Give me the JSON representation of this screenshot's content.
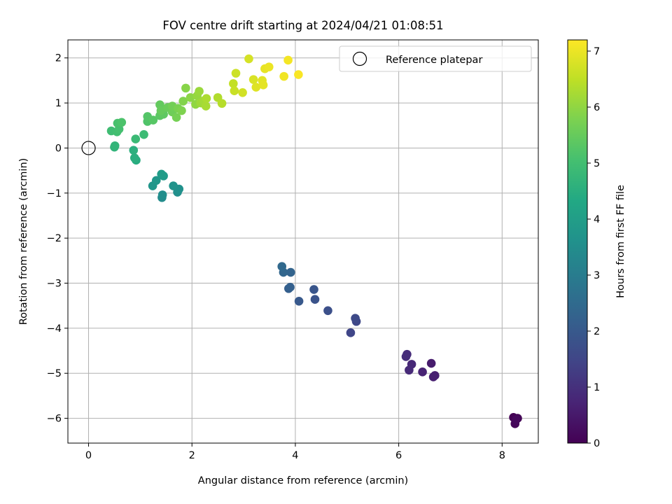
{
  "chart_data": {
    "type": "scatter",
    "title": "FOV centre drift starting at 2024/04/21 01:08:51",
    "xlabel": "Angular distance from reference (arcmin)",
    "ylabel": "Rotation from reference (arcmin)",
    "xlim": [
      -0.4,
      8.7
    ],
    "ylim": [
      -6.55,
      2.4
    ],
    "xticks": [
      0,
      2,
      4,
      6,
      8
    ],
    "yticks": [
      -6,
      -5,
      -4,
      -3,
      -2,
      -1,
      0,
      1,
      2
    ],
    "grid": true,
    "legend": {
      "placement": "top-right",
      "entries": [
        "Reference platepar"
      ]
    },
    "reference_point": {
      "x": 0,
      "y": 0
    },
    "colorbar": {
      "label": "Hours from first FF file",
      "range": [
        0,
        7.2
      ],
      "ticks": [
        0,
        1,
        2,
        3,
        4,
        5,
        6,
        7
      ],
      "colormap": "viridis"
    },
    "points": [
      {
        "x": 8.22,
        "y": -5.98,
        "h": 0.0
      },
      {
        "x": 8.3,
        "y": -6.0,
        "h": 0.05
      },
      {
        "x": 8.25,
        "y": -6.12,
        "h": 0.1
      },
      {
        "x": 8.27,
        "y": -6.03,
        "h": 0.15
      },
      {
        "x": 6.63,
        "y": -4.78,
        "h": 0.55
      },
      {
        "x": 6.7,
        "y": -5.05,
        "h": 0.6
      },
      {
        "x": 6.67,
        "y": -5.08,
        "h": 0.62
      },
      {
        "x": 6.46,
        "y": -4.97,
        "h": 0.7
      },
      {
        "x": 6.25,
        "y": -4.8,
        "h": 0.8
      },
      {
        "x": 6.2,
        "y": -4.93,
        "h": 0.85
      },
      {
        "x": 6.16,
        "y": -4.58,
        "h": 0.9
      },
      {
        "x": 6.14,
        "y": -4.63,
        "h": 0.92
      },
      {
        "x": 5.07,
        "y": -4.1,
        "h": 1.5
      },
      {
        "x": 5.18,
        "y": -3.85,
        "h": 1.55
      },
      {
        "x": 5.16,
        "y": -3.78,
        "h": 1.6
      },
      {
        "x": 4.63,
        "y": -3.61,
        "h": 1.75
      },
      {
        "x": 4.38,
        "y": -3.36,
        "h": 1.85
      },
      {
        "x": 4.36,
        "y": -3.14,
        "h": 1.9
      },
      {
        "x": 4.07,
        "y": -3.4,
        "h": 2.0
      },
      {
        "x": 3.87,
        "y": -3.12,
        "h": 2.15
      },
      {
        "x": 3.9,
        "y": -3.09,
        "h": 2.2
      },
      {
        "x": 3.91,
        "y": -2.76,
        "h": 2.3
      },
      {
        "x": 3.77,
        "y": -2.76,
        "h": 2.35
      },
      {
        "x": 3.74,
        "y": -2.63,
        "h": 2.45
      },
      {
        "x": 1.42,
        "y": -1.1,
        "h": 3.45
      },
      {
        "x": 1.43,
        "y": -1.04,
        "h": 3.5
      },
      {
        "x": 1.72,
        "y": -0.98,
        "h": 3.55
      },
      {
        "x": 1.75,
        "y": -0.91,
        "h": 3.6
      },
      {
        "x": 1.64,
        "y": -0.84,
        "h": 3.65
      },
      {
        "x": 1.24,
        "y": -0.84,
        "h": 3.75
      },
      {
        "x": 1.31,
        "y": -0.72,
        "h": 3.8
      },
      {
        "x": 1.45,
        "y": -0.62,
        "h": 3.9
      },
      {
        "x": 1.41,
        "y": -0.58,
        "h": 3.95
      },
      {
        "x": 0.92,
        "y": -0.27,
        "h": 4.45
      },
      {
        "x": 0.89,
        "y": -0.22,
        "h": 4.5
      },
      {
        "x": 0.87,
        "y": -0.05,
        "h": 4.55
      },
      {
        "x": 0.5,
        "y": 0.02,
        "h": 4.65
      },
      {
        "x": 0.51,
        "y": 0.05,
        "h": 4.7
      },
      {
        "x": 0.91,
        "y": 0.2,
        "h": 4.85
      },
      {
        "x": 1.07,
        "y": 0.3,
        "h": 4.9
      },
      {
        "x": 0.44,
        "y": 0.38,
        "h": 4.95
      },
      {
        "x": 0.55,
        "y": 0.36,
        "h": 5.0
      },
      {
        "x": 0.59,
        "y": 0.42,
        "h": 5.05
      },
      {
        "x": 0.56,
        "y": 0.55,
        "h": 5.1
      },
      {
        "x": 0.64,
        "y": 0.57,
        "h": 5.15
      },
      {
        "x": 1.14,
        "y": 0.59,
        "h": 5.2
      },
      {
        "x": 1.14,
        "y": 0.7,
        "h": 5.25
      },
      {
        "x": 1.25,
        "y": 0.62,
        "h": 5.3
      },
      {
        "x": 1.38,
        "y": 0.72,
        "h": 5.35
      },
      {
        "x": 1.45,
        "y": 0.75,
        "h": 5.4
      },
      {
        "x": 1.38,
        "y": 0.96,
        "h": 5.45
      },
      {
        "x": 1.4,
        "y": 0.83,
        "h": 5.5
      },
      {
        "x": 1.53,
        "y": 0.9,
        "h": 5.55
      },
      {
        "x": 1.62,
        "y": 0.8,
        "h": 5.6
      },
      {
        "x": 1.62,
        "y": 0.93,
        "h": 5.65
      },
      {
        "x": 1.7,
        "y": 0.68,
        "h": 5.7
      },
      {
        "x": 1.73,
        "y": 0.88,
        "h": 5.75
      },
      {
        "x": 1.8,
        "y": 0.83,
        "h": 5.8
      },
      {
        "x": 1.83,
        "y": 1.04,
        "h": 5.85
      },
      {
        "x": 1.88,
        "y": 1.33,
        "h": 5.9
      },
      {
        "x": 1.97,
        "y": 1.12,
        "h": 5.95
      },
      {
        "x": 2.07,
        "y": 0.97,
        "h": 6.0
      },
      {
        "x": 2.1,
        "y": 1.16,
        "h": 6.05
      },
      {
        "x": 2.14,
        "y": 1.26,
        "h": 6.1
      },
      {
        "x": 2.17,
        "y": 1.0,
        "h": 6.15
      },
      {
        "x": 2.23,
        "y": 1.05,
        "h": 6.2
      },
      {
        "x": 2.27,
        "y": 0.93,
        "h": 6.25
      },
      {
        "x": 2.28,
        "y": 1.1,
        "h": 6.3
      },
      {
        "x": 2.5,
        "y": 1.12,
        "h": 6.35
      },
      {
        "x": 2.58,
        "y": 0.99,
        "h": 6.4
      },
      {
        "x": 2.8,
        "y": 1.43,
        "h": 6.55
      },
      {
        "x": 2.82,
        "y": 1.27,
        "h": 6.6
      },
      {
        "x": 2.85,
        "y": 1.66,
        "h": 6.65
      },
      {
        "x": 2.98,
        "y": 1.23,
        "h": 6.7
      },
      {
        "x": 3.1,
        "y": 1.98,
        "h": 6.75
      },
      {
        "x": 3.19,
        "y": 1.52,
        "h": 6.8
      },
      {
        "x": 3.24,
        "y": 1.35,
        "h": 6.85
      },
      {
        "x": 3.36,
        "y": 1.5,
        "h": 6.9
      },
      {
        "x": 3.38,
        "y": 1.4,
        "h": 6.92
      },
      {
        "x": 3.41,
        "y": 1.76,
        "h": 6.95
      },
      {
        "x": 3.49,
        "y": 1.8,
        "h": 7.0
      },
      {
        "x": 3.78,
        "y": 1.59,
        "h": 7.05
      },
      {
        "x": 3.86,
        "y": 1.95,
        "h": 7.1
      },
      {
        "x": 4.06,
        "y": 1.63,
        "h": 7.15
      }
    ]
  }
}
